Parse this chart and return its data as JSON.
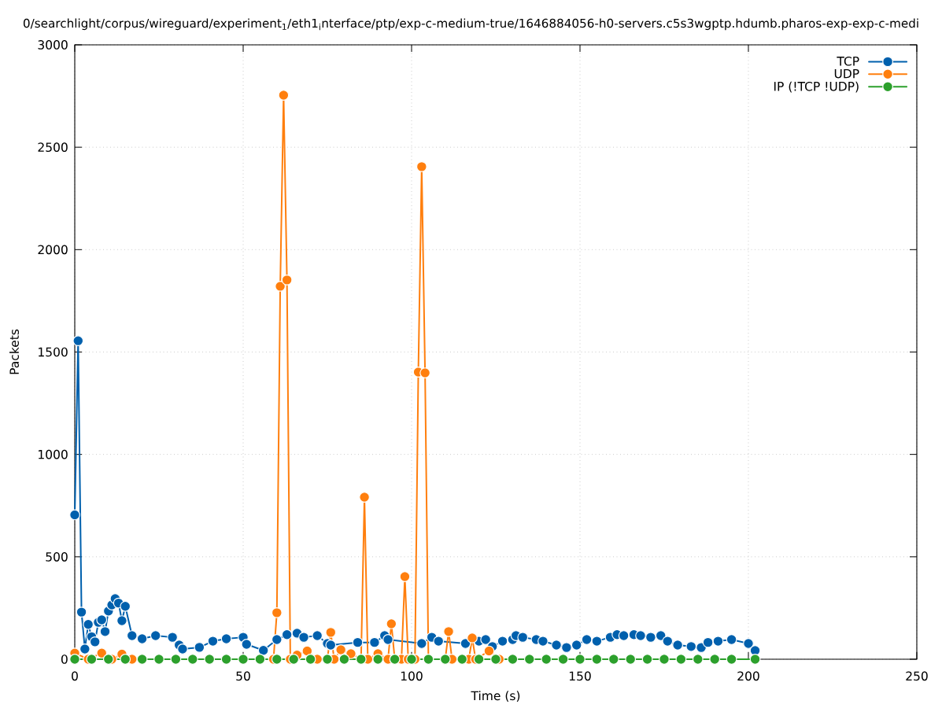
{
  "chart_data": {
    "type": "line",
    "title": "0/searchlight/corpus/wireguard/experiment$_{1}$/eth1$_{i}$nterface/ptp/exp-c-medium-true/1646884056-h0-servers.c5s3wgptp.hdumb.pharos-exp-exp-c-medi",
    "xlabel": "Time (s)",
    "ylabel": "Packets",
    "series": [
      {
        "name": "TCP",
        "color": "#0060ad",
        "x": [
          0,
          1,
          2,
          3,
          4,
          5,
          6,
          7,
          8,
          9,
          10,
          11,
          12,
          13,
          14,
          15,
          17,
          20,
          24,
          29,
          31,
          32,
          37,
          41,
          45,
          50,
          51,
          56,
          60,
          63,
          66,
          68,
          72,
          75,
          76,
          84,
          89,
          92,
          93,
          103,
          106,
          108,
          116,
          120,
          122,
          124,
          127,
          130,
          131,
          133,
          137,
          139,
          143,
          146,
          149,
          152,
          155,
          159,
          161,
          163,
          166,
          168,
          171,
          174,
          176,
          179,
          183,
          186,
          188,
          191,
          195,
          200,
          202
        ],
        "values": [
          705,
          1555,
          230,
          50,
          170,
          110,
          85,
          180,
          192,
          135,
          235,
          265,
          296,
          274,
          188,
          258,
          115,
          100,
          115,
          107,
          69,
          50,
          58,
          88,
          100,
          107,
          73,
          43,
          96,
          120,
          127,
          107,
          115,
          77,
          69,
          82,
          82,
          115,
          96,
          77,
          107,
          88,
          77,
          88,
          96,
          62,
          88,
          96,
          115,
          107,
          96,
          88,
          69,
          57,
          69,
          96,
          88,
          107,
          120,
          115,
          120,
          115,
          107,
          115,
          88,
          69,
          62,
          57,
          82,
          88,
          96,
          77,
          42
        ]
      },
      {
        "name": "UDP",
        "color": "#ff7f0e",
        "x": [
          0,
          4,
          8,
          11,
          14,
          17,
          59,
          60,
          61,
          62,
          63,
          64,
          66,
          69,
          72,
          75,
          76,
          77,
          79,
          82,
          85,
          86,
          87,
          90,
          93,
          94,
          95,
          97,
          98,
          99,
          101,
          102,
          103,
          104,
          105,
          110,
          111,
          112,
          117,
          118,
          119,
          123,
          126
        ],
        "values": [
          30,
          0,
          30,
          0,
          25,
          0,
          0,
          227,
          1821,
          2754,
          1852,
          0,
          20,
          40,
          0,
          0,
          131,
          0,
          46,
          27,
          0,
          791,
          0,
          27,
          0,
          173,
          0,
          0,
          403,
          0,
          0,
          1402,
          2405,
          1398,
          0,
          0,
          135,
          0,
          0,
          104,
          0,
          40,
          0
        ]
      },
      {
        "name": "IP (!TCP  !UDP)",
        "color": "#2ca02c",
        "x": [
          0,
          5,
          10,
          15,
          20,
          25,
          30,
          35,
          40,
          45,
          50,
          55,
          60,
          65,
          70,
          75,
          80,
          85,
          90,
          95,
          100,
          105,
          110,
          115,
          120,
          125,
          130,
          135,
          140,
          145,
          150,
          155,
          160,
          165,
          170,
          175,
          180,
          185,
          190,
          195,
          202
        ],
        "values": [
          0,
          0,
          0,
          0,
          0,
          0,
          0,
          0,
          0,
          0,
          0,
          0,
          0,
          0,
          0,
          0,
          0,
          0,
          0,
          0,
          0,
          0,
          0,
          0,
          0,
          0,
          0,
          0,
          0,
          0,
          0,
          0,
          0,
          0,
          0,
          0,
          0,
          0,
          0,
          0,
          0
        ]
      }
    ],
    "xlim": [
      0,
      250
    ],
    "ylim": [
      0,
      3000
    ],
    "xticks": [
      0,
      50,
      100,
      150,
      200,
      250
    ],
    "yticks": [
      0,
      500,
      1000,
      1500,
      2000,
      2500,
      3000
    ],
    "grid": true,
    "legend": "top right",
    "marker": "circle",
    "line_style": "solid"
  }
}
